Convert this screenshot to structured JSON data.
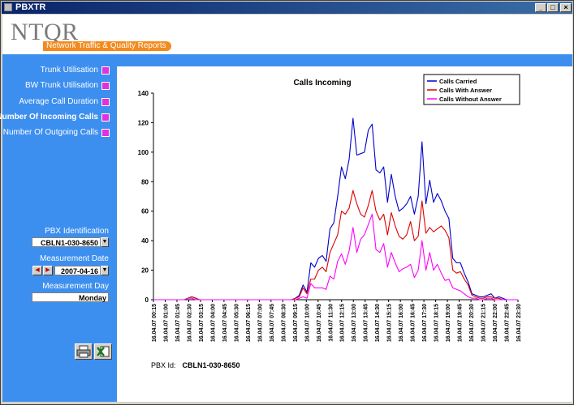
{
  "window": {
    "title": "PBXTR",
    "min": "_",
    "max": "□",
    "close": "×"
  },
  "header": {
    "logo": "NTQR",
    "tagline": "Network Traffic & Quality Reports"
  },
  "sidebar": {
    "items": [
      {
        "label": "Trunk Utilisation"
      },
      {
        "label": "BW Trunk Utilisation"
      },
      {
        "label": "Average Call Duration"
      },
      {
        "label": "Number Of Incoming Calls"
      },
      {
        "label": "Number Of Outgoing Calls"
      }
    ],
    "pbx_label": "PBX Identification",
    "pbx_value": "CBLN1-030-8650",
    "date_label": "Measurement Date",
    "date_value": "2007-04-16",
    "day_label": "Measurement Day",
    "day_value": "Monday"
  },
  "footer": {
    "pbx_label": "PBX Id:",
    "pbx_value": "CBLN1-030-8650"
  },
  "chart_data": {
    "type": "line",
    "title": "Calls Incoming",
    "ylim": [
      0,
      140
    ],
    "yticks": [
      0,
      20,
      40,
      60,
      80,
      100,
      120,
      140
    ],
    "tick_labels": [
      "16.04.07 00:15",
      "16.04.07 01:00",
      "16.04.07 01:45",
      "16.04.07 02:30",
      "16.04.07 03:15",
      "16.04.07 04:00",
      "16.04.07 04:45",
      "16.04.07 05:30",
      "16.04.07 06:15",
      "16.04.07 07:00",
      "16.04.07 07:45",
      "16.04.07 08:30",
      "16.04.07 09:15",
      "16.04.07 10:00",
      "16.04.07 10:45",
      "16.04.07 11:30",
      "16.04.07 12:15",
      "16.04.07 13:00",
      "16.04.07 13:45",
      "16.04.07 14:30",
      "16.04.07 15:15",
      "16.04.07 16:00",
      "16.04.07 16:45",
      "16.04.07 17:30",
      "16.04.07 18:15",
      "16.04.07 19:00",
      "16.04.07 19:45",
      "16.04.07 20:30",
      "16.04.07 21:15",
      "16.04.07 22:00",
      "16.04.07 22:45",
      "16.04.07 23:30"
    ],
    "legend_position": "top-right",
    "series": [
      {
        "name": "Calls Carried",
        "color": "#0000cc",
        "values": [
          0,
          0,
          0,
          0,
          0,
          0,
          0,
          0,
          0,
          1,
          2,
          1,
          0,
          0,
          0,
          0,
          0,
          0,
          0,
          0,
          0,
          0,
          0,
          0,
          0,
          0,
          0,
          0,
          0,
          0,
          0,
          0,
          0,
          0,
          0,
          0,
          0,
          1,
          3,
          10,
          5,
          25,
          22,
          28,
          30,
          26,
          48,
          52,
          70,
          90,
          82,
          95,
          123,
          98,
          99,
          100,
          115,
          119,
          88,
          86,
          90,
          66,
          85,
          70,
          60,
          62,
          65,
          70,
          58,
          70,
          107,
          65,
          81,
          66,
          72,
          67,
          60,
          55,
          28,
          25,
          25,
          18,
          12,
          4,
          3,
          2,
          2,
          3,
          4,
          1,
          2,
          1,
          0,
          0,
          0,
          0
        ]
      },
      {
        "name": "Calls With Answer",
        "color": "#dd0000",
        "values": [
          0,
          0,
          0,
          0,
          0,
          0,
          0,
          0,
          0,
          1,
          2,
          1,
          0,
          0,
          0,
          0,
          0,
          0,
          0,
          0,
          0,
          0,
          0,
          0,
          0,
          0,
          0,
          0,
          0,
          0,
          0,
          0,
          0,
          0,
          0,
          0,
          0,
          1,
          2,
          8,
          4,
          14,
          14,
          20,
          22,
          19,
          32,
          38,
          44,
          60,
          58,
          62,
          74,
          65,
          58,
          56,
          64,
          74,
          60,
          54,
          58,
          44,
          59,
          50,
          43,
          41,
          44,
          53,
          40,
          43,
          67,
          45,
          49,
          46,
          48,
          50,
          47,
          42,
          20,
          18,
          19,
          14,
          10,
          3,
          2,
          1,
          1,
          2,
          2,
          1,
          1,
          0,
          0,
          0,
          0,
          0
        ]
      },
      {
        "name": "Calls Without Answer",
        "color": "#ff00ff",
        "values": [
          0,
          0,
          0,
          0,
          0,
          0,
          0,
          0,
          0,
          1,
          1,
          0,
          0,
          0,
          0,
          0,
          0,
          0,
          0,
          0,
          0,
          0,
          0,
          0,
          0,
          0,
          0,
          0,
          0,
          0,
          0,
          0,
          0,
          0,
          0,
          0,
          0,
          0,
          1,
          2,
          1,
          11,
          8,
          8,
          8,
          7,
          16,
          14,
          26,
          31,
          24,
          33,
          49,
          32,
          41,
          44,
          51,
          58,
          34,
          32,
          38,
          22,
          32,
          25,
          19,
          21,
          22,
          24,
          15,
          20,
          40,
          20,
          32,
          20,
          24,
          18,
          13,
          14,
          8,
          7,
          6,
          4,
          2,
          1,
          1,
          0,
          0,
          1,
          1,
          0,
          0,
          0,
          0,
          0,
          0,
          0
        ]
      }
    ]
  }
}
